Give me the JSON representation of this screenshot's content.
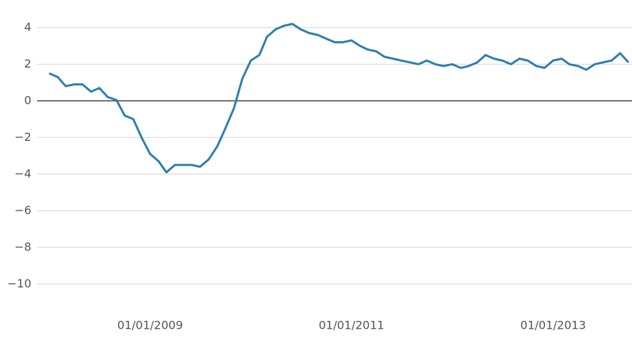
{
  "chart_data": {
    "type": "line",
    "x": [
      "2008-01-01",
      "2008-02-01",
      "2008-03-01",
      "2008-04-01",
      "2008-05-01",
      "2008-06-01",
      "2008-07-01",
      "2008-08-01",
      "2008-09-01",
      "2008-10-01",
      "2008-11-01",
      "2008-12-01",
      "2009-01-01",
      "2009-02-01",
      "2009-03-01",
      "2009-04-01",
      "2009-05-01",
      "2009-06-01",
      "2009-07-01",
      "2009-08-01",
      "2009-09-01",
      "2009-10-01",
      "2009-11-01",
      "2009-12-01",
      "2010-01-01",
      "2010-02-01",
      "2010-03-01",
      "2010-04-01",
      "2010-05-01",
      "2010-06-01",
      "2010-07-01",
      "2010-08-01",
      "2010-09-01",
      "2010-10-01",
      "2010-11-01",
      "2010-12-01",
      "2011-01-01",
      "2011-02-01",
      "2011-03-01",
      "2011-04-01",
      "2011-05-01",
      "2011-06-01",
      "2011-07-01",
      "2011-08-01",
      "2011-09-01",
      "2011-10-01",
      "2011-11-01",
      "2011-12-01",
      "2012-01-01",
      "2012-02-01",
      "2012-03-01",
      "2012-04-01",
      "2012-05-01",
      "2012-06-01",
      "2012-07-01",
      "2012-08-01",
      "2012-09-01",
      "2012-10-01",
      "2012-11-01",
      "2012-12-01",
      "2013-01-01",
      "2013-02-01",
      "2013-03-01",
      "2013-04-01",
      "2013-05-01",
      "2013-06-01",
      "2013-07-01",
      "2013-08-01",
      "2013-09-01",
      "2013-10-01"
    ],
    "series": [
      {
        "color": "#2b7fae",
        "values": [
          1.5,
          1.3,
          0.8,
          0.9,
          0.9,
          0.5,
          0.7,
          0.2,
          0.05,
          -0.8,
          -1.0,
          -2.0,
          -2.9,
          -3.3,
          -3.9,
          -3.5,
          -3.5,
          -3.5,
          -3.6,
          -3.2,
          -2.5,
          -1.5,
          -0.4,
          1.2,
          2.2,
          2.5,
          3.5,
          3.9,
          4.1,
          4.2,
          3.9,
          3.7,
          3.6,
          3.4,
          3.2,
          3.2,
          3.3,
          3.0,
          2.8,
          2.7,
          2.4,
          2.3,
          2.2,
          2.1,
          2.0,
          2.2,
          2.0,
          1.9,
          2.0,
          1.8,
          1.9,
          2.1,
          2.5,
          2.3,
          2.2,
          2.0,
          2.3,
          2.2,
          1.9,
          1.8,
          2.2,
          2.3,
          2.0,
          1.9,
          1.7,
          2.0,
          2.1,
          2.2,
          2.6,
          2.1
        ]
      }
    ],
    "xlim": [
      "2007-11-18",
      "2013-10-14"
    ],
    "xticks": [
      {
        "value": "2009-01-01",
        "label": "01/01/2009"
      },
      {
        "value": "2011-01-01",
        "label": "01/01/2011"
      },
      {
        "value": "2013-01-01",
        "label": "01/01/2013"
      }
    ],
    "ylim": [
      -11,
      5
    ],
    "yticks": [
      4,
      2,
      0,
      {
        "value": -2,
        "label": "−2"
      },
      {
        "value": -4,
        "label": "−4"
      },
      {
        "value": -6,
        "label": "−6"
      },
      {
        "value": -8,
        "label": "−8"
      },
      {
        "value": -10,
        "label": "−10"
      }
    ],
    "grid": true
  }
}
